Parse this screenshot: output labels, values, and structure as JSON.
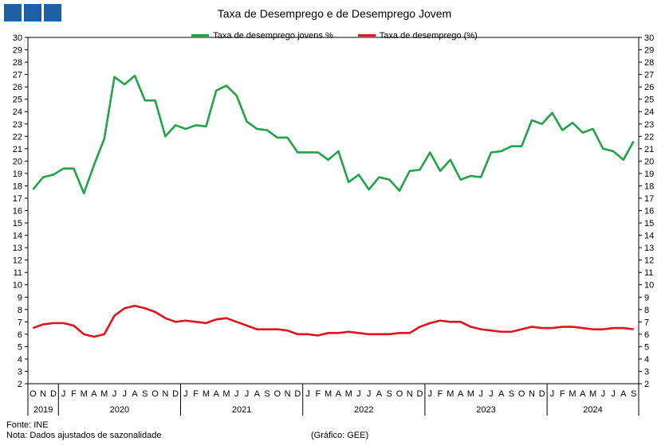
{
  "header": {
    "title": "Taxa de Desemprego e de Desemprego Jovem"
  },
  "footer": {
    "source": "Fonte: INE",
    "note": "Nota: Dados ajustados de sazonalidade",
    "credit": "(Gráfico: GEE)"
  },
  "colors": {
    "logo": "#1f5fa6",
    "youth": "#22a34a",
    "total": "#e0141e"
  },
  "chart_data": {
    "type": "line",
    "title": "Taxa de Desemprego e de Desemprego Jovem",
    "xlabel": "",
    "ylabel": "",
    "ylim": [
      2,
      30
    ],
    "y_ticks": [
      2,
      3,
      4,
      5,
      6,
      7,
      8,
      9,
      10,
      11,
      12,
      13,
      14,
      15,
      16,
      17,
      18,
      19,
      20,
      21,
      22,
      23,
      24,
      25,
      26,
      27,
      28,
      29,
      30
    ],
    "grid": false,
    "legend_position": "top-center",
    "secondary_y_axis_mirrored": true,
    "month_labels": [
      "O",
      "N",
      "D",
      "J",
      "F",
      "M",
      "A",
      "M",
      "J",
      "J",
      "A",
      "S",
      "O",
      "N",
      "D",
      "J",
      "F",
      "M",
      "A",
      "M",
      "J",
      "J",
      "A",
      "S",
      "O",
      "N",
      "D",
      "J",
      "F",
      "M",
      "A",
      "M",
      "J",
      "J",
      "A",
      "S",
      "O",
      "N",
      "D",
      "J",
      "F",
      "M",
      "A",
      "M",
      "J",
      "J",
      "A",
      "S",
      "O",
      "N",
      "D",
      "J",
      "F",
      "M",
      "A",
      "M",
      "J",
      "J",
      "A",
      "S"
    ],
    "years": [
      {
        "label": "2019",
        "start": 0,
        "count": 3
      },
      {
        "label": "2020",
        "start": 3,
        "count": 12
      },
      {
        "label": "2021",
        "start": 15,
        "count": 12
      },
      {
        "label": "2022",
        "start": 27,
        "count": 12
      },
      {
        "label": "2023",
        "start": 39,
        "count": 12
      },
      {
        "label": "2024",
        "start": 51,
        "count": 9
      }
    ],
    "series": [
      {
        "name": "Taxa de desemprego jovens %",
        "color": "#22a34a",
        "values": [
          17.7,
          18.7,
          18.9,
          19.4,
          19.4,
          17.4,
          19.7,
          21.8,
          26.8,
          26.2,
          26.9,
          24.9,
          24.9,
          22.0,
          22.9,
          22.6,
          22.9,
          22.8,
          25.7,
          26.1,
          25.3,
          23.2,
          22.6,
          22.5,
          21.9,
          21.9,
          20.7,
          20.7,
          20.7,
          20.1,
          20.8,
          18.3,
          18.9,
          17.7,
          18.7,
          18.5,
          17.6,
          19.2,
          19.3,
          20.7,
          19.2,
          20.1,
          18.5,
          18.8,
          18.7,
          20.7,
          20.8,
          21.2,
          21.2,
          23.3,
          23.0,
          23.9,
          22.5,
          23.1,
          22.3,
          22.6,
          21.0,
          20.8,
          20.1,
          21.6
        ]
      },
      {
        "name": "Taxa de desemprego (%)",
        "color": "#e0141e",
        "values": [
          6.5,
          6.8,
          6.9,
          6.9,
          6.7,
          6.0,
          5.8,
          6.0,
          7.5,
          8.1,
          8.3,
          8.1,
          7.8,
          7.3,
          7.0,
          7.1,
          7.0,
          6.9,
          7.2,
          7.3,
          7.0,
          6.7,
          6.4,
          6.4,
          6.4,
          6.3,
          6.0,
          6.0,
          5.9,
          6.1,
          6.1,
          6.2,
          6.1,
          6.0,
          6.0,
          6.0,
          6.1,
          6.1,
          6.6,
          6.9,
          7.1,
          7.0,
          7.0,
          6.6,
          6.4,
          6.3,
          6.2,
          6.2,
          6.4,
          6.6,
          6.5,
          6.5,
          6.6,
          6.6,
          6.5,
          6.4,
          6.4,
          6.5,
          6.5,
          6.4
        ]
      }
    ]
  }
}
